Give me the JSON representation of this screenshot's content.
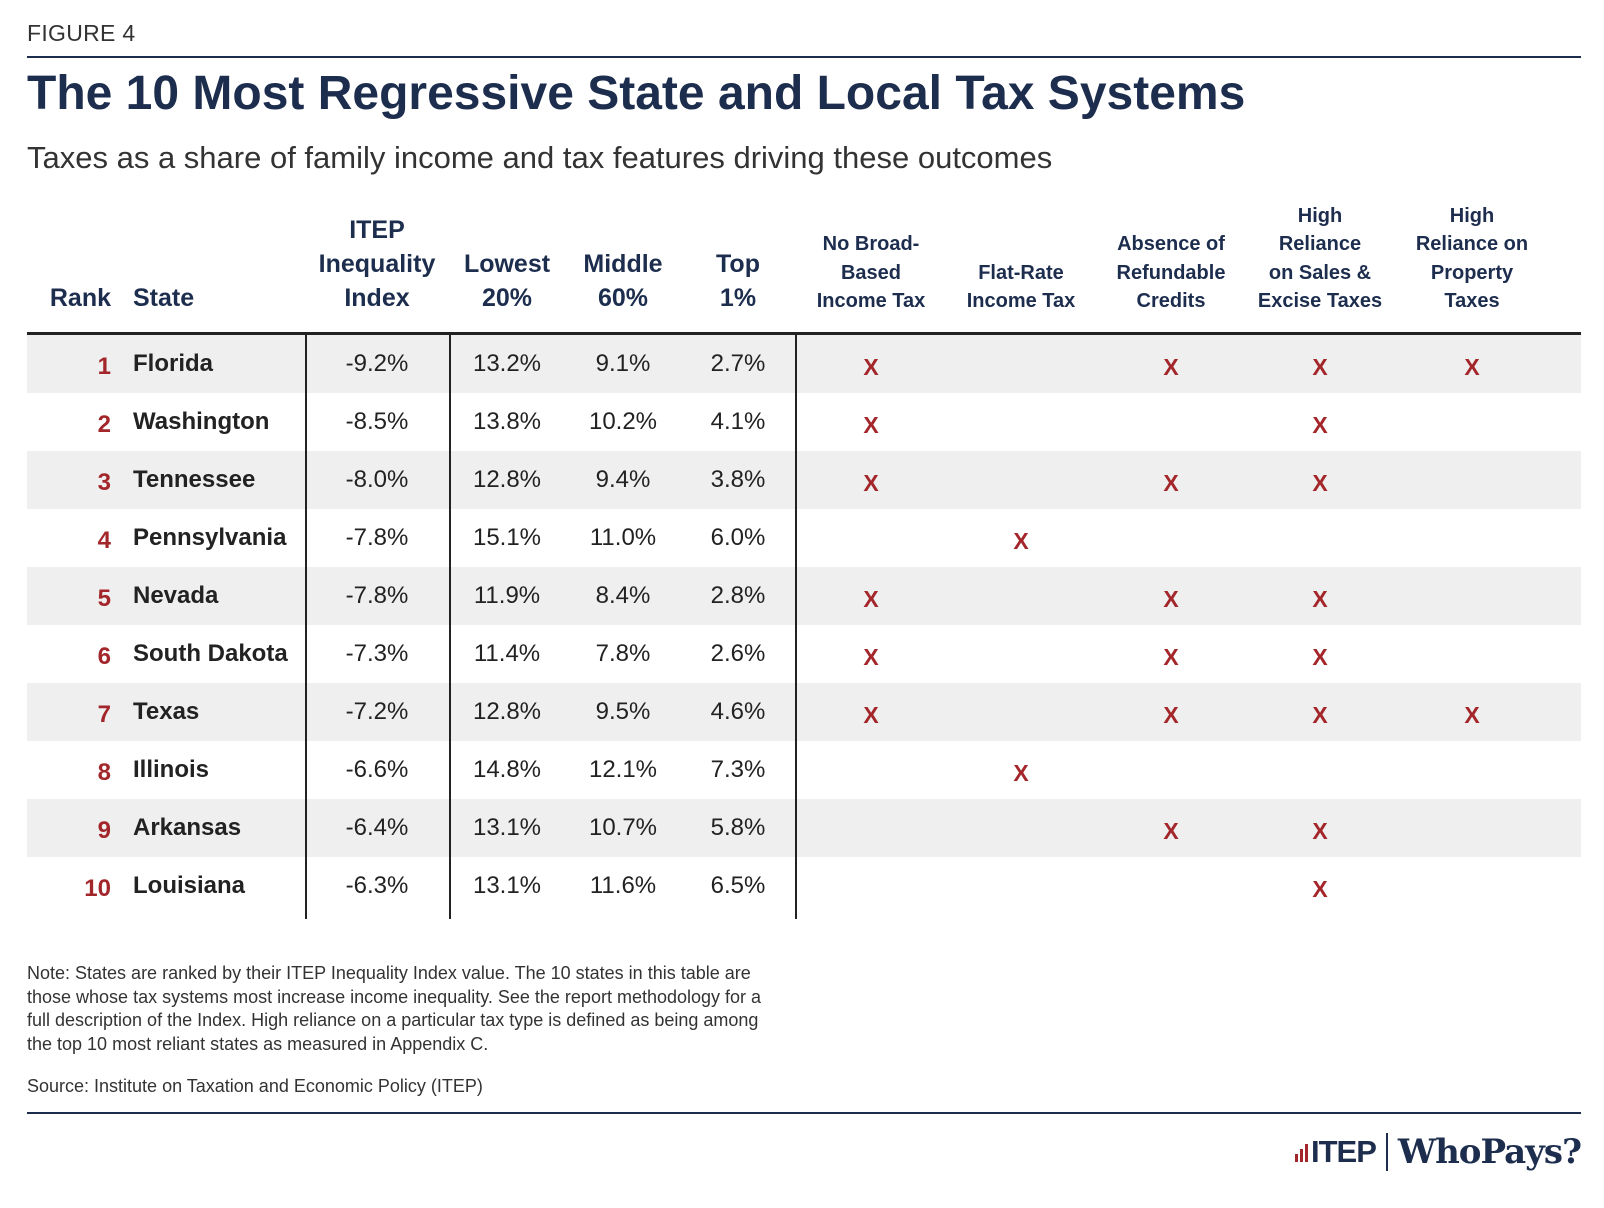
{
  "figure_label": "FIGURE 4",
  "title": "The 10 Most Regressive State and Local Tax Systems",
  "subtitle": "Taxes as a share of family income and tax features driving these outcomes",
  "columns": [
    {
      "key": "rank",
      "lines": [
        "Rank"
      ]
    },
    {
      "key": "state",
      "lines": [
        "State"
      ]
    },
    {
      "key": "index",
      "lines": [
        "ITEP",
        "Inequality",
        "Index"
      ]
    },
    {
      "key": "lowest",
      "lines": [
        "Lowest",
        "20%"
      ]
    },
    {
      "key": "middle",
      "lines": [
        "Middle",
        "60%"
      ]
    },
    {
      "key": "top",
      "lines": [
        "Top",
        "1%"
      ]
    },
    {
      "key": "f1",
      "lines": [
        "No Broad-",
        "Based",
        "Income Tax"
      ]
    },
    {
      "key": "f2",
      "lines": [
        "Flat-Rate",
        "Income Tax"
      ]
    },
    {
      "key": "f3",
      "lines": [
        "Absence of",
        "Refundable",
        "Credits"
      ]
    },
    {
      "key": "f4",
      "lines": [
        "High",
        "Reliance",
        "on Sales &",
        "Excise Taxes"
      ]
    },
    {
      "key": "f5",
      "lines": [
        "High",
        "Reliance on",
        "Property",
        "Taxes"
      ]
    }
  ],
  "mark_symbol": "X",
  "colors": {
    "navy": "#1d2d4e",
    "accent": "#a3262b",
    "row_shade": "#efefef"
  },
  "chart_data": {
    "type": "table",
    "rows": [
      {
        "rank": "1",
        "state": "Florida",
        "index": "-9.2%",
        "lowest": "13.2%",
        "middle": "9.1%",
        "top": "2.7%",
        "features": [
          true,
          false,
          true,
          true,
          true
        ]
      },
      {
        "rank": "2",
        "state": "Washington",
        "index": "-8.5%",
        "lowest": "13.8%",
        "middle": "10.2%",
        "top": "4.1%",
        "features": [
          true,
          false,
          false,
          true,
          false
        ]
      },
      {
        "rank": "3",
        "state": "Tennessee",
        "index": "-8.0%",
        "lowest": "12.8%",
        "middle": "9.4%",
        "top": "3.8%",
        "features": [
          true,
          false,
          true,
          true,
          false
        ]
      },
      {
        "rank": "4",
        "state": "Pennsylvania",
        "index": "-7.8%",
        "lowest": "15.1%",
        "middle": "11.0%",
        "top": "6.0%",
        "features": [
          false,
          true,
          false,
          false,
          false
        ]
      },
      {
        "rank": "5",
        "state": "Nevada",
        "index": "-7.8%",
        "lowest": "11.9%",
        "middle": "8.4%",
        "top": "2.8%",
        "features": [
          true,
          false,
          true,
          true,
          false
        ]
      },
      {
        "rank": "6",
        "state": "South Dakota",
        "index": "-7.3%",
        "lowest": "11.4%",
        "middle": "7.8%",
        "top": "2.6%",
        "features": [
          true,
          false,
          true,
          true,
          false
        ]
      },
      {
        "rank": "7",
        "state": "Texas",
        "index": "-7.2%",
        "lowest": "12.8%",
        "middle": "9.5%",
        "top": "4.6%",
        "features": [
          true,
          false,
          true,
          true,
          true
        ]
      },
      {
        "rank": "8",
        "state": "Illinois",
        "index": "-6.6%",
        "lowest": "14.8%",
        "middle": "12.1%",
        "top": "7.3%",
        "features": [
          false,
          true,
          false,
          false,
          false
        ]
      },
      {
        "rank": "9",
        "state": "Arkansas",
        "index": "-6.4%",
        "lowest": "13.1%",
        "middle": "10.7%",
        "top": "5.8%",
        "features": [
          false,
          false,
          true,
          true,
          false
        ]
      },
      {
        "rank": "10",
        "state": "Louisiana",
        "index": "-6.3%",
        "lowest": "13.1%",
        "middle": "11.6%",
        "top": "6.5%",
        "features": [
          false,
          false,
          false,
          true,
          false
        ]
      }
    ]
  },
  "note": "Note: States are ranked by their ITEP Inequality Index value. The 10 states in this table are those whose tax systems most increase income inequality. See the report methodology for a full description of the Index. High reliance on a particular tax type is defined as being among the top 10 most reliant states as measured in Appendix C.",
  "source": "Source: Institute on Taxation and Economic Policy (ITEP)",
  "logo": {
    "itep": "ITEP",
    "whopays": "WhoPays?"
  }
}
